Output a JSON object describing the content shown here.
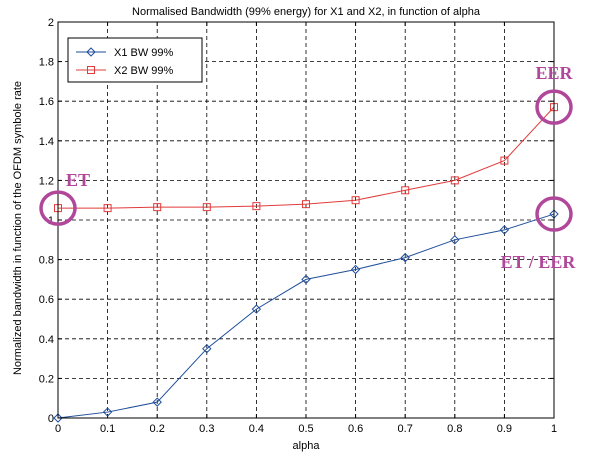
{
  "chart_data": {
    "type": "line",
    "title": "Normalised Bandwidth (99% energy) for X1 and X2, in function of alpha",
    "xlabel": "alpha",
    "ylabel": "Normalized bandwidth in function of the OFDM symbole rate",
    "xlim": [
      0,
      1
    ],
    "ylim": [
      0,
      2
    ],
    "xticks": [
      "0",
      "0.1",
      "0.2",
      "0.3",
      "0.4",
      "0.5",
      "0.6",
      "0.7",
      "0.8",
      "0.9",
      "1"
    ],
    "yticks": [
      "0",
      "0.2",
      "0.4",
      "0.6",
      "0.8",
      "1",
      "1.2",
      "1.4",
      "1.6",
      "1.8",
      "2"
    ],
    "grid": true,
    "legend_position": "top-left",
    "x": [
      0,
      0.1,
      0.2,
      0.3,
      0.4,
      0.5,
      0.6,
      0.7,
      0.8,
      0.9,
      1.0
    ],
    "series": [
      {
        "name": "X1 BW 99%",
        "marker": "diamond",
        "color": "#1f4e9a",
        "values": [
          0.0,
          0.03,
          0.08,
          0.35,
          0.55,
          0.7,
          0.75,
          0.81,
          0.9,
          0.95,
          1.03
        ]
      },
      {
        "name": "X2 BW 99%",
        "marker": "square",
        "color": "#e23b3b",
        "values": [
          1.06,
          1.06,
          1.065,
          1.065,
          1.07,
          1.08,
          1.1,
          1.15,
          1.2,
          1.3,
          1.57
        ]
      }
    ],
    "annotations": [
      {
        "text": "ET",
        "color": "#b0479a",
        "x": 0.0,
        "y": 1.06
      },
      {
        "text": "EER",
        "color": "#b0479a",
        "x": 1.0,
        "y": 1.57
      },
      {
        "text": "ET / EER",
        "color": "#b0479a",
        "x": 1.0,
        "y": 1.03
      }
    ]
  }
}
